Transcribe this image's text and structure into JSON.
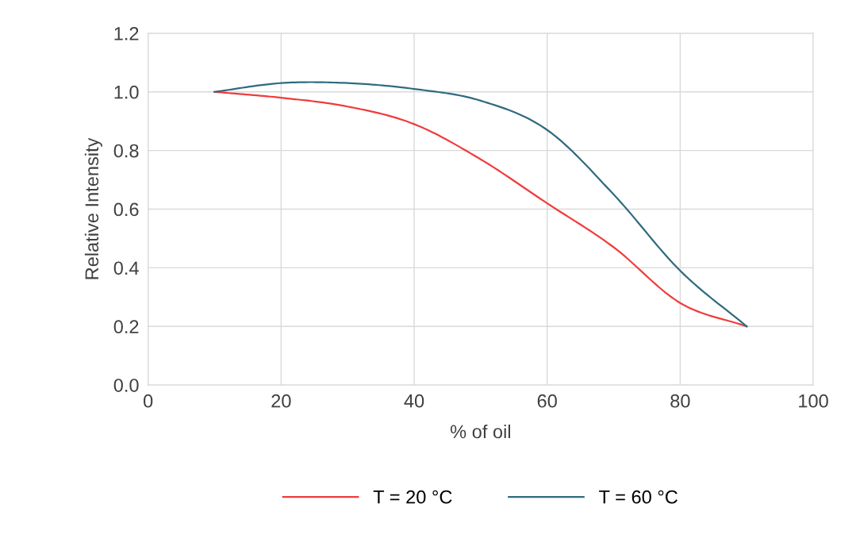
{
  "chart_data": {
    "type": "line",
    "xlabel": "% of oil",
    "ylabel": "Relative Intensity",
    "x": [
      10,
      20,
      30,
      40,
      50,
      60,
      70,
      80,
      90
    ],
    "series": [
      {
        "name": "T = 20 °C",
        "color": "#f03c3c",
        "values": [
          1.0,
          0.98,
          0.95,
          0.89,
          0.77,
          0.62,
          0.47,
          0.28,
          0.2
        ]
      },
      {
        "name": "T = 60 °C",
        "color": "#2f6b7f",
        "values": [
          1.0,
          1.03,
          1.03,
          1.01,
          0.97,
          0.87,
          0.65,
          0.39,
          0.2
        ]
      }
    ],
    "xlim": [
      0,
      100
    ],
    "xticks": [
      0,
      20,
      40,
      60,
      80,
      100
    ],
    "ylim": [
      0,
      1.2
    ],
    "yticks": [
      {
        "value": 0,
        "label": "0.0"
      },
      {
        "value": 0.2,
        "label": "0.2"
      },
      {
        "value": 0.4,
        "label": "0.4"
      },
      {
        "value": 0.6,
        "label": "0.6"
      },
      {
        "value": 0.8,
        "label": "0.8"
      },
      {
        "value": 1.0,
        "label": "1.0"
      },
      {
        "value": 1.2,
        "label": "1.2"
      }
    ],
    "grid": true,
    "legend": "bottom",
    "marker": "none",
    "line_style": "solid"
  }
}
